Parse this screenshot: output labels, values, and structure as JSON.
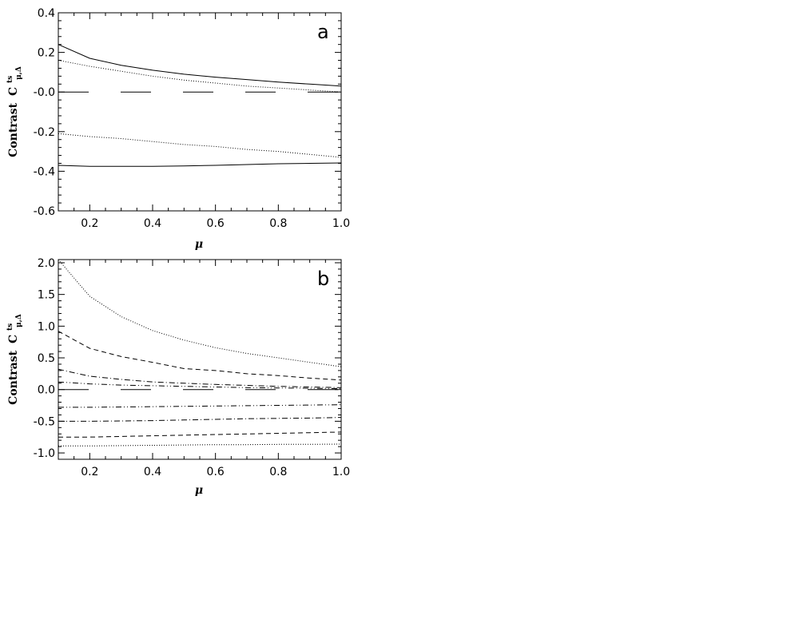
{
  "chart_data": [
    {
      "type": "line",
      "panel_label": "a",
      "xlabel": "μ",
      "ylabel": "Contrast",
      "ylabel_symbol": "C",
      "ylabel_sup": "ts",
      "ylabel_sub": "μ,Δ",
      "xlim": [
        0.1,
        1.0
      ],
      "ylim": [
        -0.6,
        0.4
      ],
      "xticks": [
        "0.2",
        "0.4",
        "0.6",
        "0.8",
        "1.0"
      ],
      "xtick_values": [
        0.2,
        0.4,
        0.6,
        0.8,
        1.0
      ],
      "yticks": [
        "-0.6",
        "-0.4",
        "-0.2",
        "-0.0",
        "0.2",
        "0.4"
      ],
      "ytick_values": [
        -0.6,
        -0.4,
        -0.2,
        0.0,
        0.2,
        0.4
      ],
      "grid": false,
      "x": [
        0.1,
        0.2,
        0.3,
        0.4,
        0.5,
        0.6,
        0.7,
        0.8,
        0.9,
        1.0
      ],
      "series": [
        {
          "style": "solid",
          "values": [
            0.24,
            0.17,
            0.135,
            0.11,
            0.09,
            0.075,
            0.063,
            0.05,
            0.04,
            0.03
          ]
        },
        {
          "style": "dotted",
          "values": [
            0.16,
            0.13,
            0.105,
            0.08,
            0.06,
            0.045,
            0.03,
            0.02,
            0.01,
            0.0
          ]
        },
        {
          "style": "longdash",
          "values": [
            0.0,
            0.0,
            0.0,
            0.0,
            0.0,
            0.0,
            0.0,
            0.0,
            0.0,
            0.0
          ]
        },
        {
          "style": "dotted",
          "values": [
            -0.21,
            -0.225,
            -0.235,
            -0.25,
            -0.265,
            -0.275,
            -0.29,
            -0.3,
            -0.315,
            -0.33
          ]
        },
        {
          "style": "solid",
          "values": [
            -0.37,
            -0.375,
            -0.375,
            -0.375,
            -0.373,
            -0.37,
            -0.366,
            -0.362,
            -0.36,
            -0.358
          ]
        }
      ]
    },
    {
      "type": "line",
      "panel_label": "b",
      "xlabel": "μ",
      "ylabel": "Contrast",
      "ylabel_symbol": "C",
      "ylabel_sup": "ts",
      "ylabel_sub": "μ,Δ",
      "xlim": [
        0.1,
        1.0
      ],
      "ylim": [
        -1.1,
        2.05
      ],
      "xticks": [
        "0.2",
        "0.4",
        "0.6",
        "0.8",
        "1.0"
      ],
      "xtick_values": [
        0.2,
        0.4,
        0.6,
        0.8,
        1.0
      ],
      "yticks": [
        "-1.0",
        "-0.5",
        "0.0",
        "0.5",
        "1.0",
        "1.5",
        "2.0"
      ],
      "ytick_values": [
        -1.0,
        -0.5,
        0.0,
        0.5,
        1.0,
        1.5,
        2.0
      ],
      "grid": false,
      "x": [
        0.1,
        0.2,
        0.3,
        0.4,
        0.5,
        0.6,
        0.7,
        0.8,
        0.9,
        1.0
      ],
      "series": [
        {
          "style": "dotted",
          "values": [
            2.05,
            1.47,
            1.15,
            0.93,
            0.78,
            0.66,
            0.57,
            0.5,
            0.43,
            0.36
          ]
        },
        {
          "style": "dashed",
          "values": [
            0.92,
            0.65,
            0.52,
            0.43,
            0.33,
            0.3,
            0.25,
            0.22,
            0.18,
            0.15
          ]
        },
        {
          "style": "dashdot",
          "values": [
            0.32,
            0.21,
            0.16,
            0.12,
            0.1,
            0.08,
            0.065,
            0.05,
            0.04,
            0.03
          ]
        },
        {
          "style": "dashdotdot",
          "values": [
            0.12,
            0.09,
            0.07,
            0.06,
            0.05,
            0.04,
            0.03,
            0.025,
            0.02,
            0.015
          ]
        },
        {
          "style": "longdash",
          "values": [
            0.0,
            0.0,
            0.0,
            0.0,
            0.0,
            0.0,
            0.0,
            0.0,
            0.0,
            0.0
          ]
        },
        {
          "style": "dashdotdot",
          "values": [
            -0.28,
            -0.28,
            -0.275,
            -0.27,
            -0.265,
            -0.26,
            -0.255,
            -0.25,
            -0.245,
            -0.24
          ]
        },
        {
          "style": "dashdot",
          "values": [
            -0.5,
            -0.5,
            -0.495,
            -0.49,
            -0.48,
            -0.47,
            -0.46,
            -0.455,
            -0.45,
            -0.44
          ]
        },
        {
          "style": "dashed",
          "values": [
            -0.75,
            -0.75,
            -0.74,
            -0.73,
            -0.72,
            -0.71,
            -0.7,
            -0.69,
            -0.68,
            -0.67
          ]
        },
        {
          "style": "dotted",
          "values": [
            -0.89,
            -0.89,
            -0.885,
            -0.88,
            -0.875,
            -0.87,
            -0.87,
            -0.865,
            -0.865,
            -0.86
          ]
        }
      ]
    }
  ]
}
